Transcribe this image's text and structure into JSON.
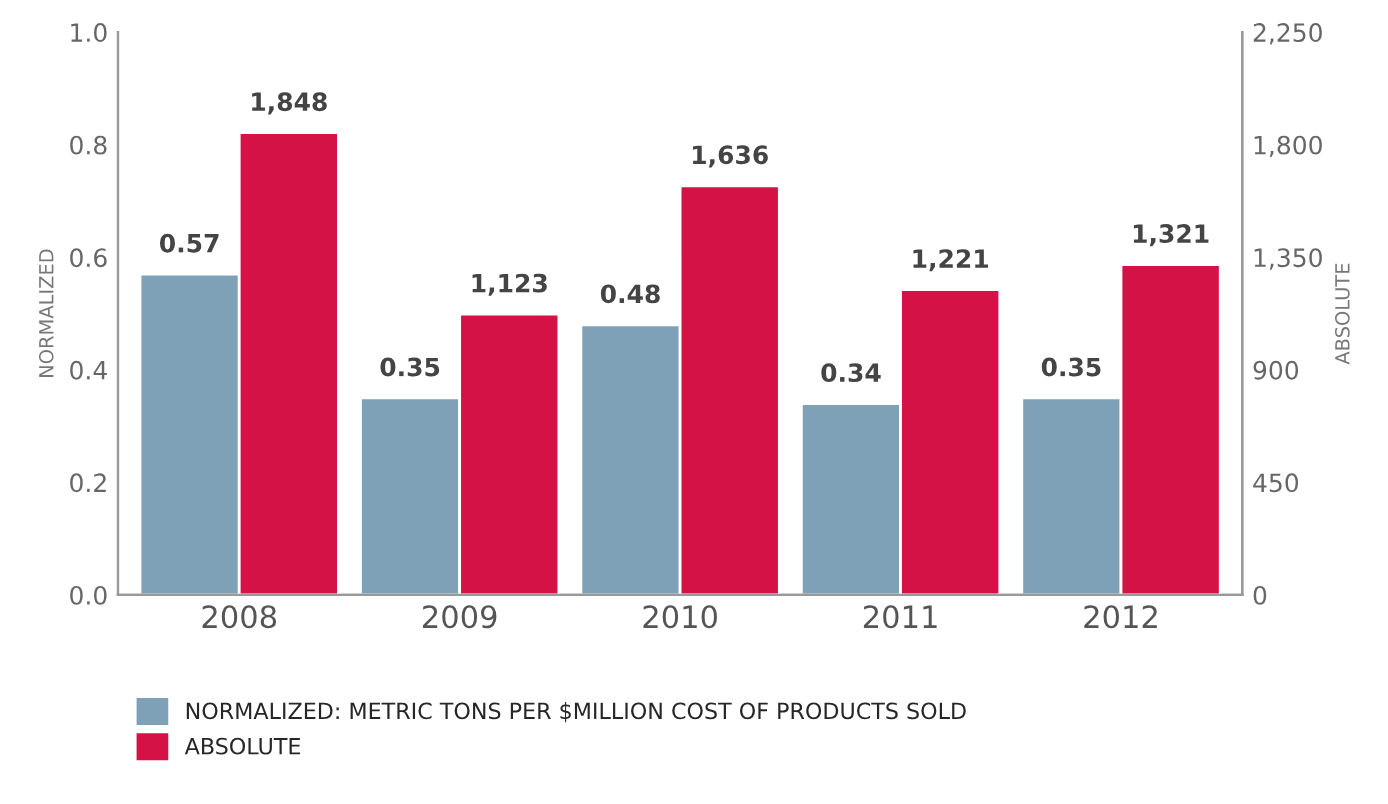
{
  "chart_data": {
    "type": "bar",
    "categories": [
      "2008",
      "2009",
      "2010",
      "2011",
      "2012"
    ],
    "ylabel": "NORMALIZED",
    "y2label": "ABSOLUTE",
    "series": [
      {
        "name": "NORMALIZED: METRIC TONS PER $MILLION COST OF PRODUCTS SOLD",
        "color": "#7fa1b8",
        "values": [
          0.57,
          0.35,
          0.48,
          0.34,
          0.35
        ],
        "value_labels": [
          "0.57",
          "0.35",
          "0.48",
          "0.34",
          "0.35"
        ]
      },
      {
        "name": "ABSOLUTE",
        "color": "#d41245",
        "axis": "y2",
        "values": [
          1848,
          1123,
          1636,
          1221,
          1321
        ],
        "value_labels": [
          "1,848",
          "1,123",
          "1,636",
          "1,221",
          "1,321"
        ]
      }
    ],
    "ylim": [
      0,
      1.0
    ],
    "yticks": [
      {
        "value": 0,
        "label": "0.0"
      },
      0.2,
      0.4,
      0.6,
      0.8,
      {
        "value": 1.0,
        "label": "1.0"
      }
    ],
    "y2lim": [
      0,
      2250
    ],
    "y2ticks": [
      0,
      450,
      900,
      {
        "value": 1350,
        "label": "1,350"
      },
      {
        "value": 1800,
        "label": "1,800"
      },
      {
        "value": 2250,
        "label": "2,250"
      }
    ],
    "grid": false,
    "legend": "bottom left"
  }
}
